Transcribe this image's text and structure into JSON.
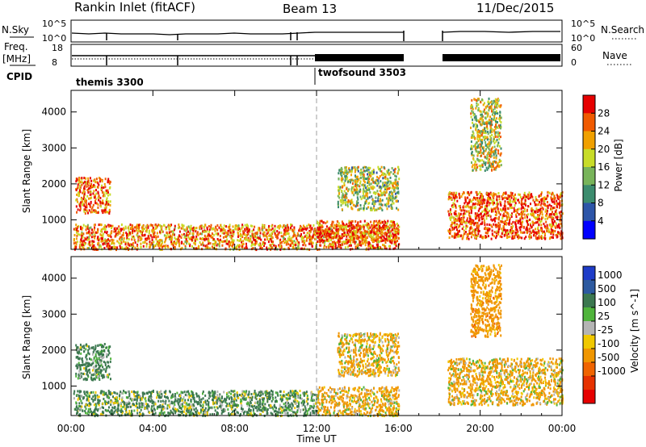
{
  "header": {
    "station": "Rankin Inlet (fitACF)",
    "beam": "Beam 13",
    "date": "11/Dec/2015"
  },
  "housekeeping": {
    "nsky_label": "N.Sky",
    "nsky_ticks": [
      "10^5",
      "10^0"
    ],
    "nsearch_label": "N.Search",
    "nsearch_ticks": [
      "10^5",
      "10^0"
    ],
    "freq_label_1": "Freq.",
    "freq_label_2": "[MHz]",
    "freq_ticks": [
      "18",
      "8"
    ],
    "nave_label": "Nave",
    "nave_ticks": [
      "60",
      "0"
    ],
    "cpid_label": "CPID",
    "cpid_entries": [
      {
        "name": "themis 3300",
        "start_hour": 0
      },
      {
        "name": "twofsound 3503",
        "start_hour": 12
      }
    ]
  },
  "colors": {
    "power_scale": [
      "#0000ff",
      "#2d55a8",
      "#3c8c6e",
      "#78b45a",
      "#c8dc28",
      "#f0a000",
      "#f05a00",
      "#e60000"
    ],
    "velocity_scale": [
      "#1e3cc8",
      "#2d5aa0",
      "#3c7850",
      "#50b43c",
      "#b4b4b4",
      "#f0c800",
      "#f09600",
      "#f06400",
      "#e63200",
      "#e60000"
    ]
  },
  "chart_data": [
    {
      "type": "heatmap",
      "panel": "power",
      "xlabel": "",
      "ylabel": "Slant Range [km]",
      "x_unit": "hours UT",
      "xlim": [
        0,
        24
      ],
      "ylim": [
        180,
        4600
      ],
      "y_ticks": [
        "1000",
        "2000",
        "3000",
        "4000"
      ],
      "colorbar": {
        "label": "Power [dB]",
        "ticks": [
          "4",
          "8",
          "12",
          "16",
          "20",
          "24",
          "28"
        ],
        "range": [
          0,
          32
        ]
      },
      "echo_regions": [
        {
          "t": [
            0.2,
            1.9
          ],
          "r": [
            1200,
            2200
          ],
          "value": 26
        },
        {
          "t": [
            0.1,
            16.0
          ],
          "r": [
            200,
            900
          ],
          "value": 24
        },
        {
          "t": [
            12.0,
            16.0
          ],
          "r": [
            400,
            1000
          ],
          "value": 26
        },
        {
          "t": [
            13.0,
            16.0
          ],
          "r": [
            1300,
            2500
          ],
          "value": 16
        },
        {
          "t": [
            18.4,
            24.0
          ],
          "r": [
            500,
            1800
          ],
          "value": 26
        },
        {
          "t": [
            19.5,
            21.0
          ],
          "r": [
            2400,
            4400
          ],
          "value": 18
        }
      ]
    },
    {
      "type": "heatmap",
      "panel": "velocity",
      "xlabel": "Time UT",
      "ylabel": "Slant Range [km]",
      "x_unit": "hours UT",
      "xlim": [
        0,
        24
      ],
      "ylim": [
        180,
        4600
      ],
      "x_ticks": [
        "00:00",
        "04:00",
        "08:00",
        "12:00",
        "16:00",
        "20:00",
        "00:00"
      ],
      "y_ticks": [
        "1000",
        "2000",
        "3000",
        "4000"
      ],
      "colorbar": {
        "label": "Velocity [m s^-1]",
        "ticks": [
          "1000",
          "500",
          "100",
          "25",
          "-25",
          "-100",
          "-500",
          "-1000"
        ]
      },
      "echo_regions": [
        {
          "t": [
            0.2,
            1.9
          ],
          "r": [
            1200,
            2200
          ],
          "value": 200
        },
        {
          "t": [
            0.1,
            12.0
          ],
          "r": [
            200,
            900
          ],
          "value": 150
        },
        {
          "t": [
            12.0,
            16.0
          ],
          "r": [
            200,
            1000
          ],
          "value": -150
        },
        {
          "t": [
            13.0,
            16.0
          ],
          "r": [
            1300,
            2500
          ],
          "value": -150
        },
        {
          "t": [
            18.4,
            24.0
          ],
          "r": [
            500,
            1800
          ],
          "value": -150
        },
        {
          "t": [
            19.5,
            21.0
          ],
          "r": [
            2400,
            4400
          ],
          "value": -300
        }
      ]
    }
  ]
}
